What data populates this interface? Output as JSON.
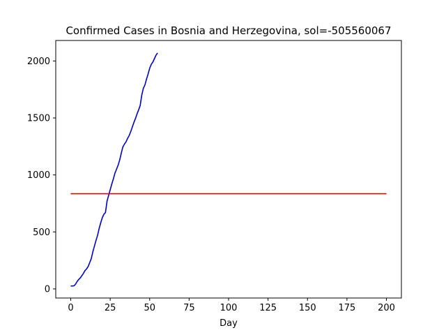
{
  "chart_data": {
    "type": "line",
    "title": "Confirmed Cases in Bosnia and Herzegovina, sol=-505560067",
    "xlabel": "Day",
    "ylabel": "",
    "xlim": [
      -9.5,
      209.5
    ],
    "ylim": [
      -80,
      2180
    ],
    "xticks": [
      0,
      25,
      50,
      75,
      100,
      125,
      150,
      175,
      200
    ],
    "yticks": [
      0,
      500,
      1000,
      1500,
      2000
    ],
    "grid": false,
    "series": [
      {
        "color": "#0000cc",
        "x": [
          0,
          1,
          2,
          3,
          4,
          5,
          6,
          7,
          8,
          9,
          10,
          11,
          12,
          13,
          14,
          15,
          16,
          17,
          18,
          19,
          20,
          21,
          22,
          23,
          24,
          25,
          26,
          27,
          28,
          29,
          30,
          31,
          32,
          33,
          34,
          35,
          36,
          37,
          38,
          39,
          40,
          41,
          42,
          43,
          44,
          45,
          46,
          47,
          48,
          49,
          50,
          51,
          52,
          53,
          54,
          55
        ],
        "y": [
          25,
          26,
          27,
          40,
          64,
          82,
          96,
          115,
          135,
          160,
          175,
          195,
          230,
          265,
          325,
          375,
          425,
          470,
          530,
          580,
          625,
          655,
          670,
          770,
          820,
          870,
          920,
          965,
          1015,
          1050,
          1085,
          1130,
          1190,
          1245,
          1270,
          1290,
          1320,
          1345,
          1380,
          1420,
          1460,
          1495,
          1535,
          1570,
          1610,
          1700,
          1760,
          1790,
          1840,
          1885,
          1935,
          1970,
          1990,
          2020,
          2050,
          2070
        ]
      },
      {
        "color": "#dd0000",
        "x": [
          0,
          200
        ],
        "y": [
          835,
          835
        ]
      }
    ]
  }
}
